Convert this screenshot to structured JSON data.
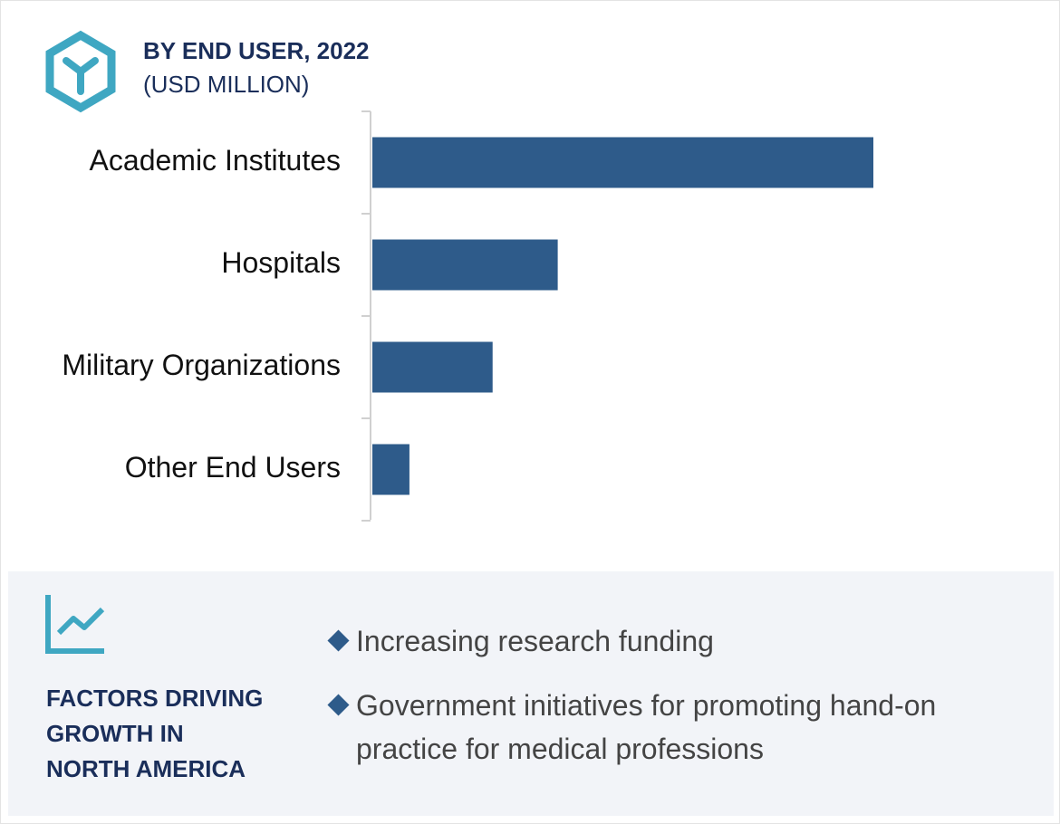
{
  "chart_data": {
    "type": "bar",
    "orientation": "horizontal",
    "title": "BY END USER, 2022",
    "subtitle": "(USD MILLION)",
    "categories": [
      "Academic Institutes",
      "Hospitals",
      "Military Organizations",
      "Other End Users"
    ],
    "values": [
      100,
      37,
      24,
      7.4
    ],
    "color": "#2e5b8a"
  },
  "factors": {
    "heading_lines": [
      "FACTORS DRIVING",
      "GROWTH IN",
      "NORTH AMERICA"
    ],
    "items": [
      "Increasing research funding",
      "Government initiatives for promoting hand-on practice for medical professions"
    ]
  }
}
